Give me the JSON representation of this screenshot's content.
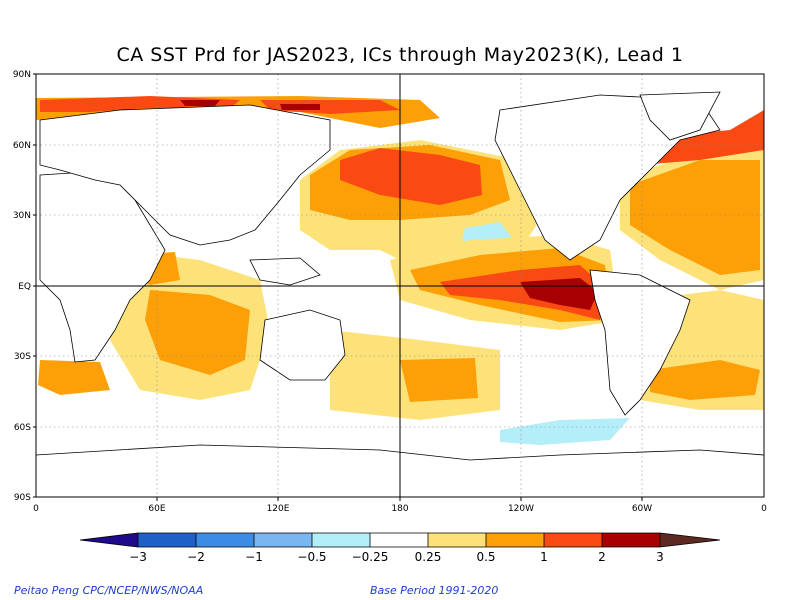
{
  "title": "CA SST Prd for JAS2023, ICs through May2023(K), Lead 1",
  "lat_labels": [
    "90N",
    "60N",
    "30N",
    "EQ",
    "30S",
    "60S",
    "90S"
  ],
  "lon_labels": [
    "0",
    "60E",
    "120E",
    "180",
    "120W",
    "60W",
    "0"
  ],
  "colorbar": {
    "labels": [
      "−3",
      "−2",
      "−1",
      "−0.5",
      "−0.25",
      "0.25",
      "0.5",
      "1",
      "2",
      "3"
    ],
    "colors": {
      "lt_neg3": "#1f0a8c",
      "neg3_neg2": "#1e5fc8",
      "neg2_neg1": "#3c8ce6",
      "neg1_neg05": "#7ab6f0",
      "neg05_neg025": "#b4eef8",
      "neutral": "#ffffff",
      "p025_p05": "#fde27a",
      "p05_p1": "#fda008",
      "p1_p2": "#f94a14",
      "p2_p3": "#a80000",
      "gt_p3": "#5c2a20"
    }
  },
  "credits": {
    "left": "Peitao Peng CPC/NCEP/NWS/NOAA",
    "right": "Base Period 1991-2020"
  }
}
